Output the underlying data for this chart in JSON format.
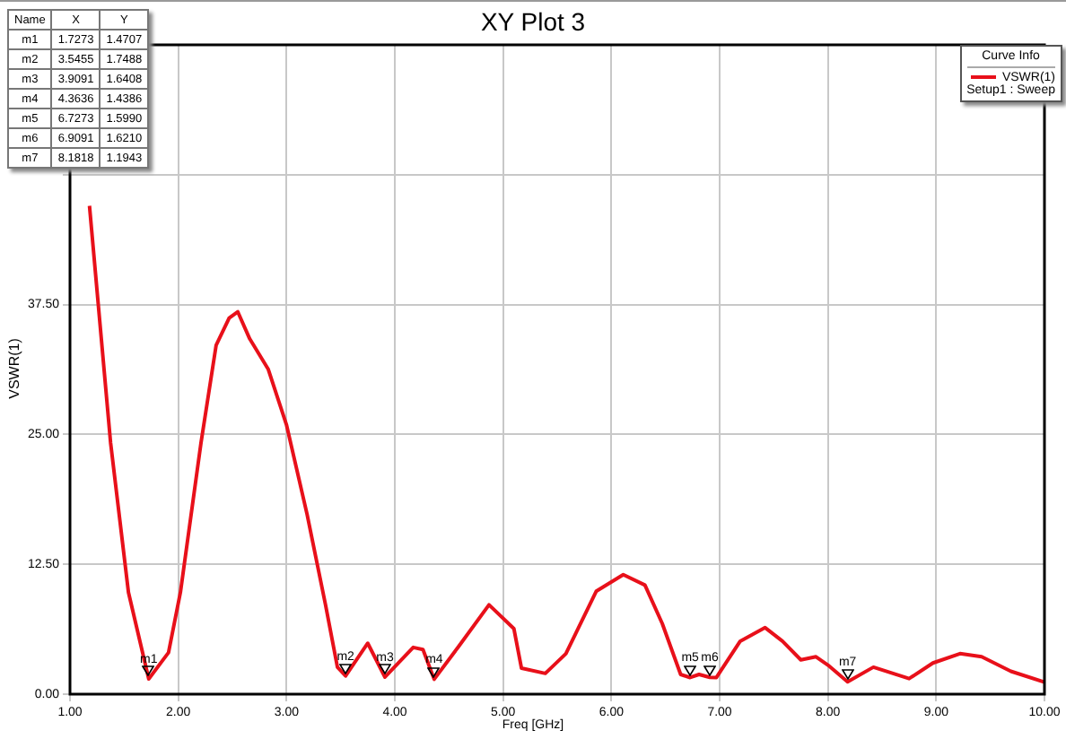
{
  "chart_data": {
    "type": "line",
    "title": "XY Plot 3",
    "xlabel": "Freq [GHz]",
    "ylabel": "VSWR(1)",
    "legend_title": "Curve Info",
    "legend": "top right",
    "grid": true,
    "marker": "none",
    "line_style": "solid",
    "xlim": [
      1,
      10
    ],
    "ylim": [
      0,
      62.5
    ],
    "xticks": [
      {
        "value": 1,
        "label": "1.00"
      },
      {
        "value": 2,
        "label": "2.00"
      },
      {
        "value": 3,
        "label": "3.00"
      },
      {
        "value": 4,
        "label": "4.00"
      },
      {
        "value": 5,
        "label": "5.00"
      },
      {
        "value": 6,
        "label": "6.00"
      },
      {
        "value": 7,
        "label": "7.00"
      },
      {
        "value": 8,
        "label": "8.00"
      },
      {
        "value": 9,
        "label": "9.00"
      },
      {
        "value": 10,
        "label": "10.00"
      }
    ],
    "yticks": [
      {
        "value": 0,
        "label": "0.00"
      },
      {
        "value": 12.5,
        "label": "12.50"
      },
      {
        "value": 25,
        "label": "25.00"
      },
      {
        "value": 37.5,
        "label": "37.50"
      },
      {
        "value": 50,
        "label": null
      },
      {
        "value": 62.5,
        "label": null
      }
    ],
    "x": [
      1.18,
      1.375,
      1.54,
      1.7273,
      1.91,
      2.02,
      2.21,
      2.35,
      2.47,
      2.55,
      2.66,
      2.83,
      3.0,
      3.19,
      3.36,
      3.47,
      3.5455,
      3.75,
      3.9091,
      4.17,
      4.26,
      4.3636,
      4.59,
      4.87,
      5.1,
      5.17,
      5.39,
      5.58,
      5.86,
      6.11,
      6.31,
      6.47,
      6.64,
      6.7273,
      6.81,
      6.9091,
      6.97,
      7.19,
      7.42,
      7.58,
      7.75,
      7.89,
      8.0,
      8.1818,
      8.42,
      8.75,
      8.97,
      9.22,
      9.42,
      9.69,
      10.0
    ],
    "series": [
      {
        "name": "VSWR(1)",
        "color": "#e8101a",
        "values": [
          47,
          24.2,
          9.8,
          1.4707,
          4.0,
          9.8,
          24.2,
          33.6,
          36.2,
          36.8,
          34.2,
          31.3,
          25.9,
          17.3,
          8.6,
          2.6,
          1.7488,
          4.9,
          1.6408,
          4.5,
          4.3,
          1.4386,
          4.6,
          8.6,
          6.3,
          2.5,
          2.0,
          3.9,
          9.9,
          11.5,
          10.5,
          6.8,
          1.9,
          1.599,
          1.9,
          1.621,
          1.6,
          5.1,
          6.4,
          5.1,
          3.3,
          3.6,
          2.8,
          1.1943,
          2.6,
          1.5,
          3.0,
          3.9,
          3.6,
          2.2,
          1.15
        ]
      }
    ],
    "annotations": [
      {
        "text": "m1",
        "x": 1.7273,
        "y": 1.4707
      },
      {
        "text": "m2",
        "x": 3.5455,
        "y": 1.7488
      },
      {
        "text": "m3",
        "x": 3.9091,
        "y": 1.6408
      },
      {
        "text": "m4",
        "x": 4.3636,
        "y": 1.4386
      },
      {
        "text": "m5",
        "x": 6.7273,
        "y": 1.599
      },
      {
        "text": "m6",
        "x": 6.9091,
        "y": 1.621
      },
      {
        "text": "m7",
        "x": 8.1818,
        "y": 1.1943
      },
      "Name",
      "X",
      "Y",
      "m1",
      "1.7273",
      "1.4707",
      "m2",
      "3.5455",
      "1.7488",
      "m3",
      "3.9091",
      "1.6408",
      "m4",
      "4.3636",
      "1.4386",
      "m5",
      "6.7273",
      "1.5990",
      "m6",
      "6.9091",
      "1.6210",
      "m7",
      "8.1818",
      "1.1943",
      "Setup1 : Sweep"
    ]
  }
}
